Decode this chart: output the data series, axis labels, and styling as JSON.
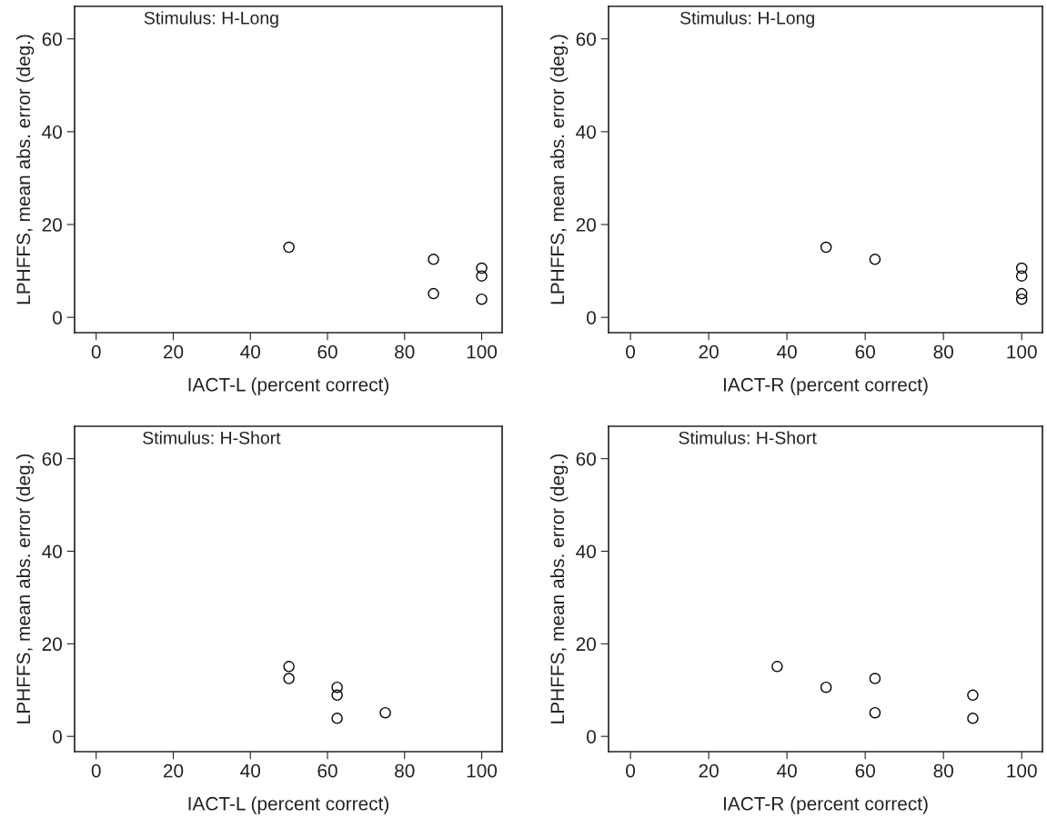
{
  "chart_data": [
    {
      "type": "scatter",
      "title": "Stimulus: H-Long",
      "xlabel": "IACT-L (percent correct)",
      "ylabel": "LPHFFS, mean abs. error (deg.)",
      "xlim": [
        -5.6,
        105.3
      ],
      "ylim": [
        -3.3,
        67
      ],
      "xticks": [
        0,
        20,
        40,
        60,
        80,
        100
      ],
      "yticks": [
        0,
        20,
        40,
        60
      ],
      "marker": "circle",
      "series": [
        {
          "color": "#000000",
          "x": [
            50,
            87.5,
            87.5,
            100,
            100,
            100
          ],
          "values": [
            15.1,
            12.5,
            5.1,
            10.6,
            8.9,
            3.9
          ]
        }
      ]
    },
    {
      "type": "scatter",
      "title": "Stimulus: H-Long",
      "xlabel": "IACT-R (percent correct)",
      "ylabel": "LPHFFS, mean abs. error (deg.)",
      "xlim": [
        -5.6,
        105.3
      ],
      "ylim": [
        -3.3,
        67
      ],
      "xticks": [
        0,
        20,
        40,
        60,
        80,
        100
      ],
      "yticks": [
        0,
        20,
        40,
        60
      ],
      "marker": "circle",
      "series": [
        {
          "color": "#000000",
          "x": [
            50,
            62.5,
            100,
            100,
            100,
            100
          ],
          "values": [
            15.1,
            12.5,
            10.6,
            8.9,
            5.1,
            3.9
          ]
        }
      ]
    },
    {
      "type": "scatter",
      "title": "Stimulus: H-Short",
      "xlabel": "IACT-L (percent correct)",
      "ylabel": "LPHFFS, mean abs. error (deg.)",
      "xlim": [
        -5.6,
        105.3
      ],
      "ylim": [
        -3.3,
        67
      ],
      "xticks": [
        0,
        20,
        40,
        60,
        80,
        100
      ],
      "yticks": [
        0,
        20,
        40,
        60
      ],
      "marker": "circle",
      "series": [
        {
          "color": "#000000",
          "x": [
            50,
            50,
            62.5,
            62.5,
            62.5,
            75
          ],
          "values": [
            15.1,
            12.5,
            10.6,
            8.9,
            3.9,
            5.1
          ]
        }
      ]
    },
    {
      "type": "scatter",
      "title": "Stimulus: H-Short",
      "xlabel": "IACT-R (percent correct)",
      "ylabel": "LPHFFS, mean abs. error (deg.)",
      "xlim": [
        -5.6,
        105.3
      ],
      "ylim": [
        -3.3,
        67
      ],
      "xticks": [
        0,
        20,
        40,
        60,
        80,
        100
      ],
      "yticks": [
        0,
        20,
        40,
        60
      ],
      "marker": "circle",
      "series": [
        {
          "color": "#000000",
          "x": [
            37.5,
            50,
            62.5,
            62.5,
            87.5,
            87.5
          ],
          "values": [
            15.1,
            10.6,
            12.5,
            5.1,
            8.9,
            3.9
          ]
        }
      ]
    }
  ]
}
